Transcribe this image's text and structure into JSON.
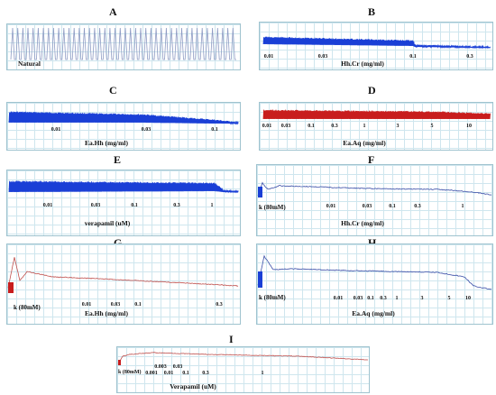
{
  "chart_data": [
    {
      "id": "A",
      "type": "line",
      "panel_label": "A",
      "annotation": "Natural",
      "color": "#8f9cc4",
      "description_free": true
    },
    {
      "id": "B",
      "type": "line",
      "panel_label": "B",
      "xlabel": "Hh.Cr (mg/ml)",
      "ticks": [
        "0.01",
        "0.03",
        "0.1",
        "0.3"
      ],
      "color": "#1a3fd6"
    },
    {
      "id": "C",
      "type": "line",
      "panel_label": "C",
      "xlabel": "Ea.Hh  (mg/ml)",
      "ticks": [
        "0.01",
        "0.03",
        "0.1"
      ],
      "color": "#1a3fd6"
    },
    {
      "id": "D",
      "type": "line",
      "panel_label": "D",
      "xlabel": "Ea.Aq  (mg/ml)",
      "ticks": [
        "0.01",
        "0.03",
        "0.1",
        "0.3",
        "1",
        "3",
        "5",
        "10"
      ],
      "color": "#c81d1d"
    },
    {
      "id": "E",
      "type": "line",
      "panel_label": "E",
      "xlabel": "verapamil (uM)",
      "ticks": [
        "0.01",
        "0.03",
        "0.1",
        "0.3",
        "1"
      ],
      "color": "#1a3fd6"
    },
    {
      "id": "F",
      "type": "line",
      "panel_label": "F",
      "k_label": "k (80mM)",
      "xlabel": "Hh.Cr (mg/ml)",
      "ticks": [
        "0.01",
        "0.03",
        "0.1",
        "0.3",
        "1"
      ],
      "color": "#3b4fa8"
    },
    {
      "id": "G",
      "type": "line",
      "panel_label": "G",
      "k_label": "k (80mM)",
      "xlabel": "Ea.Hh  (mg/ml)",
      "ticks": [
        "0.01",
        "0.03",
        "0.1",
        "0.3"
      ],
      "color": "#c0504d"
    },
    {
      "id": "H",
      "type": "line",
      "panel_label": "H",
      "k_label": "k (80mM)",
      "xlabel": "Ea.Aq  (mg/ml)",
      "ticks": [
        "0.01",
        "0.03",
        "0.1",
        "0.3",
        "1",
        "3",
        "5",
        "10"
      ],
      "color": "#3b4fa8"
    },
    {
      "id": "I",
      "type": "line",
      "panel_label": "I",
      "k_label": "k (80mM)",
      "xlabel": "Verapamil (uM)",
      "ticks_row1": [
        "0.003",
        "0.03"
      ],
      "ticks_row2": [
        "0.001",
        "0.01",
        "0.1",
        "0.3",
        "1"
      ],
      "color": "#c0504d"
    }
  ]
}
